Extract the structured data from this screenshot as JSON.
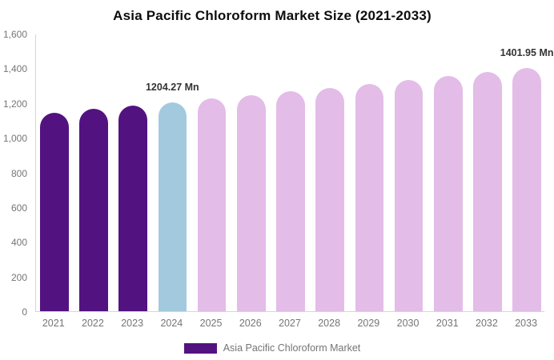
{
  "chart_data": {
    "type": "bar",
    "title": "Asia Pacific Chloroform Market Size (2021-2033)",
    "unit": "Mn",
    "categories": [
      "2021",
      "2022",
      "2023",
      "2024",
      "2025",
      "2026",
      "2027",
      "2028",
      "2029",
      "2030",
      "2031",
      "2032",
      "2033"
    ],
    "series": [
      {
        "name": "Asia Pacific Chloroform Market",
        "values": [
          1144.9,
          1164.4,
          1184.2,
          1204.27,
          1224.8,
          1245.6,
          1266.9,
          1288.4,
          1310.4,
          1332.7,
          1355.4,
          1378.4,
          1401.95
        ]
      }
    ],
    "point_labels": [
      null,
      null,
      null,
      "1204.27 Mn",
      null,
      null,
      null,
      null,
      null,
      null,
      null,
      null,
      "1401.95 Mn"
    ],
    "point_colors": [
      "#521380",
      "#521380",
      "#521380",
      "#A3C9DF",
      "#E3BCE8",
      "#E3BCE8",
      "#E3BCE8",
      "#E3BCE8",
      "#E3BCE8",
      "#E3BCE8",
      "#E3BCE8",
      "#E3BCE8",
      "#E3BCE8"
    ],
    "ylim": [
      0,
      1600
    ],
    "yticks": [
      {
        "value": 0,
        "label": "0"
      },
      {
        "value": 200,
        "label": "200"
      },
      {
        "value": 400,
        "label": "400"
      },
      {
        "value": 600,
        "label": "600"
      },
      {
        "value": 800,
        "label": "800"
      },
      {
        "value": 1000,
        "label": "1,000"
      },
      {
        "value": 1200,
        "label": "1,200"
      },
      {
        "value": 1400,
        "label": "1,400"
      },
      {
        "value": 1600,
        "label": "1,600"
      }
    ],
    "grid": false,
    "legend": {
      "position": "bottom",
      "items": [
        {
          "label": "Asia Pacific Chloroform Market",
          "color": "#521380"
        }
      ]
    },
    "colors": {
      "historical": "#521380",
      "base_year": "#A3C9DF",
      "forecast": "#E3BCE8",
      "axis_line": "#d6d6d6",
      "tick_text": "#757575",
      "data_label_text": "#333333",
      "title_text": "#0d0d0d"
    }
  }
}
